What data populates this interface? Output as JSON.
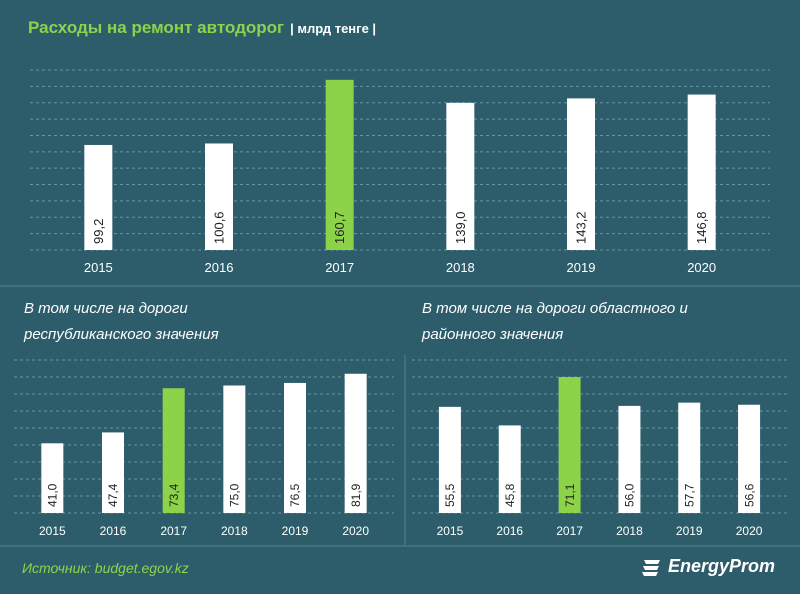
{
  "header": {
    "title": "Расходы на ремонт автодорог",
    "unit": "| млрд тенге |"
  },
  "subtitles": {
    "left": "В том числе на дороги республиканского значения",
    "right": "В том числе на дороги областного и районного значения"
  },
  "footer": {
    "source": "Источник: budget.egov.kz",
    "brand": "EnergyProm"
  },
  "colors": {
    "highlight": "#8dd34a",
    "bar": "#ffffff",
    "background": "#2d5d6b",
    "grid": "#7fb0bd"
  },
  "chart_data": [
    {
      "type": "bar",
      "title": "Расходы на ремонт автодорог",
      "categories": [
        "2015",
        "2016",
        "2017",
        "2018",
        "2019",
        "2020"
      ],
      "values": [
        99.2,
        100.6,
        160.7,
        139.0,
        143.2,
        146.8
      ],
      "labels": [
        "99,2",
        "100,6",
        "160,7",
        "139,0",
        "143,2",
        "146,8"
      ],
      "highlight_index": 2,
      "ylim": [
        0,
        170
      ]
    },
    {
      "type": "bar",
      "title": "В том числе на дороги республиканского значения",
      "categories": [
        "2015",
        "2016",
        "2017",
        "2018",
        "2019",
        "2020"
      ],
      "values": [
        41.0,
        47.4,
        73.4,
        75.0,
        76.5,
        81.9
      ],
      "labels": [
        "41,0",
        "47,4",
        "73,4",
        "75,0",
        "76,5",
        "81,9"
      ],
      "highlight_index": 2,
      "ylim": [
        0,
        90
      ]
    },
    {
      "type": "bar",
      "title": "В том числе на дороги областного и районного значения",
      "categories": [
        "2015",
        "2016",
        "2017",
        "2018",
        "2019",
        "2020"
      ],
      "values": [
        55.5,
        45.8,
        71.1,
        56.0,
        57.7,
        56.6
      ],
      "labels": [
        "55,5",
        "45,8",
        "71,1",
        "56,0",
        "57,7",
        "56,6"
      ],
      "highlight_index": 2,
      "ylim": [
        0,
        80
      ]
    }
  ]
}
